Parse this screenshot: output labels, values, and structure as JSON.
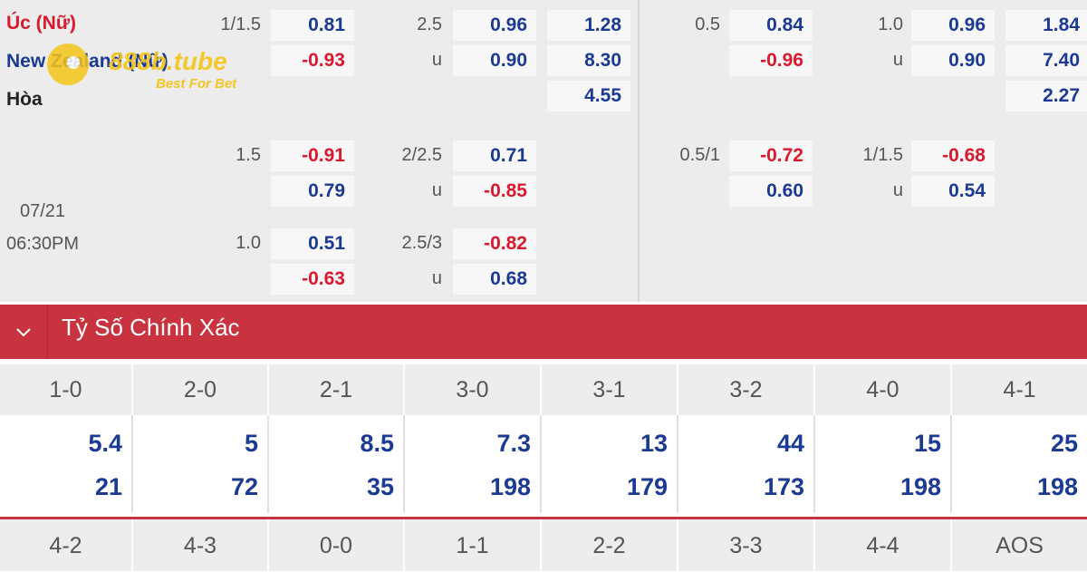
{
  "teams": {
    "home": "Úc (Nữ)",
    "away": "New Zealand (Nữ)",
    "draw": "Hòa"
  },
  "match": {
    "date": "07/21",
    "time": "06:30PM"
  },
  "odds_left": {
    "h1_hdp": "1/1.5",
    "h1_home": "0.81",
    "h1_away": "-0.93",
    "h1_ou": "2.5",
    "h1_over": "0.96",
    "h1_u": "u",
    "h1_under": "0.90",
    "h1_1x2_home": "1.28",
    "h1_1x2_away": "8.30",
    "h1_1x2_draw": "4.55",
    "h2_hdp": "1.5",
    "h2_home": "-0.91",
    "h2_away": "0.79",
    "h2_ou": "2/2.5",
    "h2_over": "0.71",
    "h2_u": "u",
    "h2_under": "-0.85",
    "h3_hdp": "1.0",
    "h3_home": "0.51",
    "h3_away": "-0.63",
    "h3_ou": "2.5/3",
    "h3_over": "-0.82",
    "h3_u": "u",
    "h3_under": "0.68"
  },
  "odds_right": {
    "h1_hdp": "0.5",
    "h1_home": "0.84",
    "h1_away": "-0.96",
    "h1_ou": "1.0",
    "h1_over": "0.96",
    "h1_u": "u",
    "h1_under": "0.90",
    "h1_1x2_home": "1.84",
    "h1_1x2_away": "7.40",
    "h1_1x2_draw": "2.27",
    "h2_hdp": "0.5/1",
    "h2_home": "-0.72",
    "h2_away": "0.60",
    "h2_ou": "1/1.5",
    "h2_over": "-0.68",
    "h2_u": "u",
    "h2_under": "0.54"
  },
  "logo": {
    "text": "888b.tube",
    "tagline": "Best For Bet"
  },
  "section": {
    "title": "Tỷ Số Chính Xác"
  },
  "scores_row1": [
    "1-0",
    "2-0",
    "2-1",
    "3-0",
    "3-1",
    "3-2",
    "4-0",
    "4-1"
  ],
  "values_top": [
    "5.4",
    "5",
    "8.5",
    "7.3",
    "13",
    "44",
    "15",
    "25"
  ],
  "values_bottom": [
    "21",
    "72",
    "35",
    "198",
    "179",
    "173",
    "198",
    "198"
  ],
  "scores_row2": [
    "4-2",
    "4-3",
    "0-0",
    "1-1",
    "2-2",
    "3-3",
    "4-4",
    "AOS"
  ],
  "colors": {
    "accent_red": "#c8333f",
    "odds_blue": "#1b3a93",
    "odds_red": "#d8192e"
  }
}
